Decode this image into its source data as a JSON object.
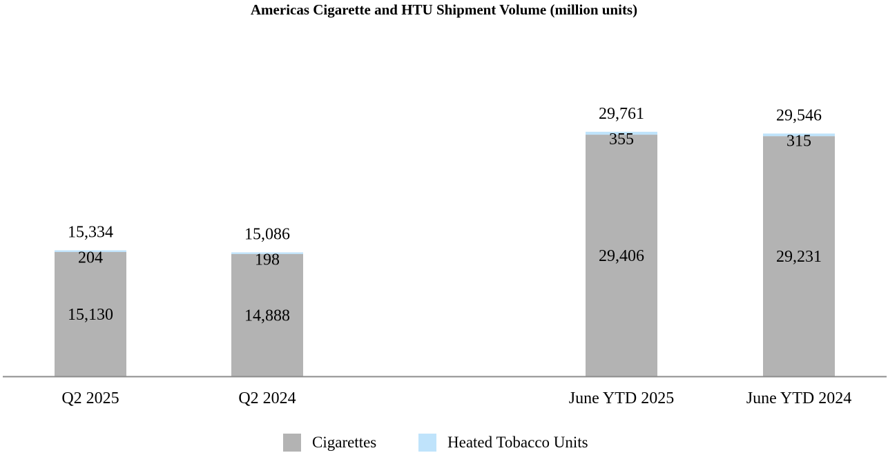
{
  "chart_data": {
    "type": "bar",
    "stacked": true,
    "title": "Americas Cigarette and HTU Shipment Volume (million units)",
    "categories": [
      "Q2 2025",
      "Q2 2024",
      "June YTD 2025",
      "June  YTD 2024"
    ],
    "series": [
      {
        "name": "Cigarettes",
        "values": [
          15130,
          14888,
          29406,
          29231
        ],
        "labels": [
          "15,130",
          "14,888",
          "29,406",
          "29,231"
        ],
        "color": "#b3b3b3"
      },
      {
        "name": "Heated Tobacco Units",
        "values": [
          204,
          198,
          355,
          315
        ],
        "labels": [
          "204",
          "198",
          "355",
          "315"
        ],
        "color": "#bfe3fb"
      }
    ],
    "totals": [
      15334,
      15086,
      29761,
      29546
    ],
    "total_labels": [
      "15,334",
      "15,086",
      "29,761",
      "29,546"
    ],
    "legend_position": "bottom",
    "grid": false
  }
}
